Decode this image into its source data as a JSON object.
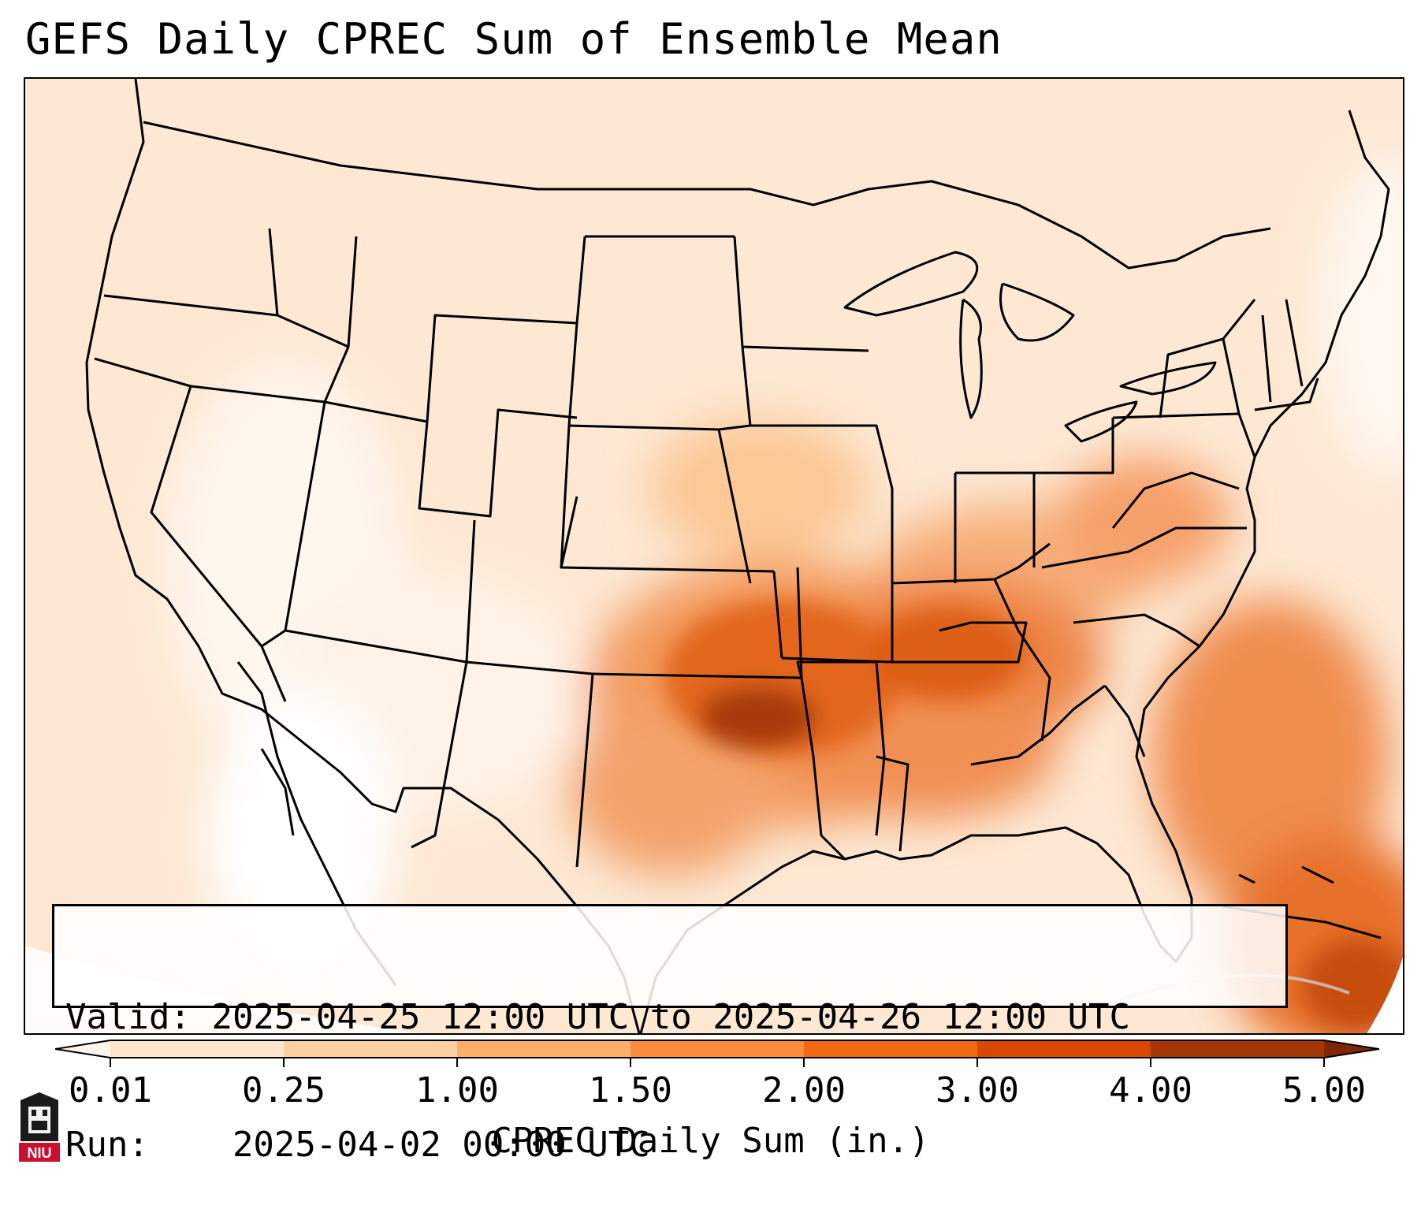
{
  "title": "GEFS Daily CPREC Sum of Ensemble Mean",
  "info": {
    "valid_label": "Valid:",
    "valid_value": "2025-04-25 12:00 UTC to 2025-04-26 12:00 UTC",
    "run_label": "Run:",
    "run_value": "2025-04-02 00:00 UTC"
  },
  "colorbar": {
    "label": "CPREC Daily Sum (in.)",
    "levels": [
      "0.01",
      "0.25",
      "1.00",
      "1.50",
      "2.00",
      "3.00",
      "4.00",
      "5.00"
    ],
    "colors": [
      "#fff5eb",
      "#fee6ce",
      "#fdd0a2",
      "#fdae6b",
      "#fd8d3c",
      "#f16913",
      "#d94801",
      "#a63603",
      "#7f2704"
    ]
  },
  "map": {
    "region": "Contiguous United States",
    "max_area": "southern Plains / Ozarks"
  },
  "logo": {
    "text": "NIU",
    "icon": "niu-logo-icon"
  }
}
